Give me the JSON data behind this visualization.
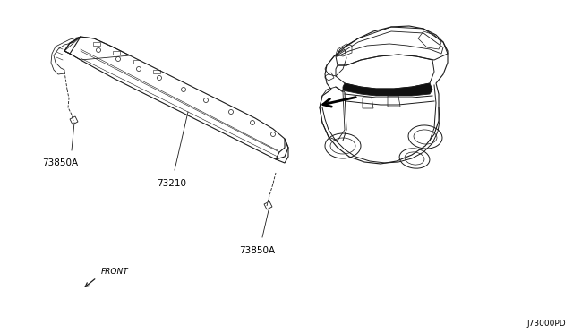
{
  "bg_color": "#ffffff",
  "part_label_73210": "73210",
  "part_label_73850A_top": "73850A",
  "part_label_73850A_bottom": "73850A",
  "front_label": "FRONT",
  "diagram_id": "J73000PD",
  "line_color": "#1a1a1a",
  "font_size_parts": 7.5,
  "font_size_id": 6.5,
  "panel_color": "#1a1a1a",
  "panel_lw": 0.8,
  "car_lw": 0.7,
  "roof_strip_color": "#111111"
}
